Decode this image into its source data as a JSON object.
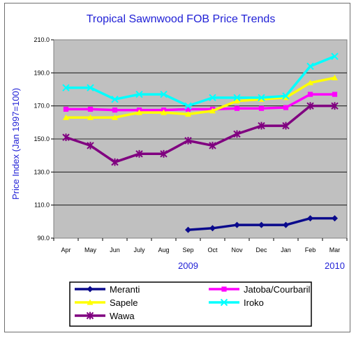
{
  "chart_data": {
    "type": "line",
    "title": "Tropical Sawnwood FOB Price Trends",
    "xlabel": "",
    "ylabel": "Price Index (Jan 1997=100)",
    "categories": [
      "Apr",
      "May",
      "Jun",
      "July",
      "Aug",
      "Sep",
      "Oct",
      "Nov",
      "Dec",
      "Jan",
      "Feb",
      "Mar"
    ],
    "year_labels": [
      {
        "label": "2009",
        "category": "Sep"
      },
      {
        "label": "2010",
        "category": "Mar"
      }
    ],
    "ylim": [
      90,
      210
    ],
    "yticks": [
      "90.0",
      "110.0",
      "130.0",
      "150.0",
      "170.0",
      "190.0",
      "210.0"
    ],
    "grid": true,
    "plot_background": "#c0c0c0",
    "legend_position": "bottom",
    "series": [
      {
        "name": "Meranti",
        "color": "#0a0a8c",
        "marker": "diamond",
        "values": [
          null,
          null,
          null,
          null,
          null,
          95,
          96,
          98,
          98,
          98,
          102,
          102
        ]
      },
      {
        "name": "Jatoba/Courbaril",
        "color": "#ff00ff",
        "marker": "square",
        "values": [
          168,
          168,
          167.5,
          167.5,
          167.5,
          168,
          168,
          168.5,
          168.5,
          169,
          177,
          177
        ]
      },
      {
        "name": "Sapele",
        "color": "#ffff00",
        "marker": "triangle",
        "values": [
          163,
          163,
          163,
          166,
          166,
          165,
          167,
          173,
          174,
          175,
          184,
          187
        ]
      },
      {
        "name": "Iroko",
        "color": "#00ffff",
        "marker": "x",
        "values": [
          181,
          181,
          174,
          177,
          177,
          170,
          175,
          175,
          175,
          176,
          194,
          200
        ]
      },
      {
        "name": "Wawa",
        "color": "#800080",
        "marker": "asterisk",
        "values": [
          151,
          146,
          136,
          141,
          141,
          149,
          146,
          153,
          158,
          158,
          170,
          170
        ]
      }
    ]
  }
}
